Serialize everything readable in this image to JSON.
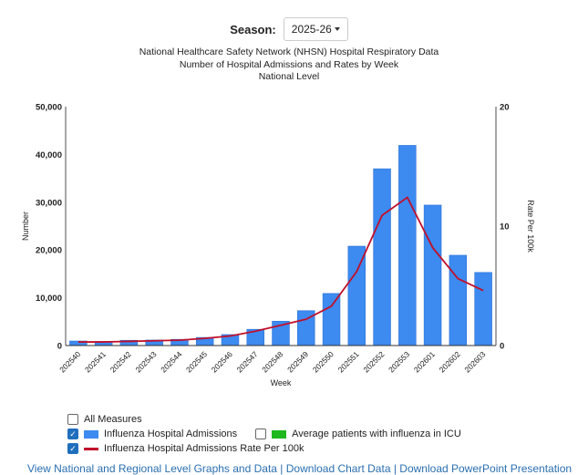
{
  "season": {
    "label": "Season:",
    "value": "2025-26"
  },
  "titles": {
    "line1": "National Healthcare Safety Network (NHSN) Hospital Respiratory Data",
    "line2": "Number of Hospital Admissions and Rates by Week",
    "line3": "National Level"
  },
  "legend": {
    "all_measures": {
      "label": "All Measures",
      "checked": false
    },
    "admissions": {
      "label": "Influenza Hospital Admissions",
      "checked": true,
      "color": "#3d8af0"
    },
    "icu": {
      "label": "Average patients with influenza in ICU",
      "checked": false,
      "color": "#1fb81f"
    },
    "rate": {
      "label": "Influenza Hospital Admissions Rate Per 100k",
      "checked": true,
      "color": "#c0102a"
    }
  },
  "links": {
    "view": "View National and Regional Level Graphs and Data",
    "sep": " | ",
    "download_data": "Download Chart Data",
    "download_ppt": "Download PowerPoint Presentation"
  },
  "chart_data": {
    "type": "bar",
    "title": "National Healthcare Safety Network (NHSN) Hospital Respiratory Data",
    "xlabel": "Week",
    "ylabel": "Number",
    "y2label": "Rate Per 100k",
    "ylim": [
      0,
      50000
    ],
    "y2lim": [
      0,
      20
    ],
    "yticks": [
      "0",
      "10,000",
      "20,000",
      "30,000",
      "40,000",
      "50,000"
    ],
    "y2ticks": [
      "0",
      "10",
      "20"
    ],
    "categories": [
      "202540",
      "202541",
      "202542",
      "202543",
      "202544",
      "202545",
      "202546",
      "202547",
      "202548",
      "202549",
      "202550",
      "202551",
      "202552",
      "202553",
      "202601",
      "202602",
      "202603"
    ],
    "series": [
      {
        "name": "Influenza Hospital Admissions",
        "type": "bar",
        "axis": "left",
        "color": "#3d8af0",
        "values": [
          950,
          850,
          1100,
          1150,
          1300,
          1700,
          2300,
          3400,
          5100,
          7300,
          10900,
          20800,
          37000,
          41900,
          29400,
          18900,
          15300
        ]
      },
      {
        "name": "Influenza Hospital Admissions Rate Per 100k",
        "type": "line",
        "axis": "right",
        "color": "#c0102a",
        "values": [
          0.3,
          0.3,
          0.35,
          0.4,
          0.45,
          0.6,
          0.8,
          1.2,
          1.7,
          2.2,
          3.3,
          6.2,
          10.9,
          12.4,
          8.2,
          5.6,
          4.6
        ]
      }
    ],
    "grid": false,
    "legend": "bottom-left"
  }
}
